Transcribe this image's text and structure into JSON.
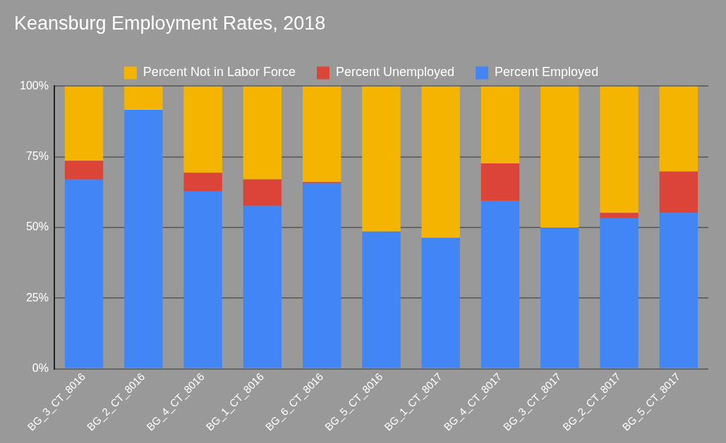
{
  "chart_data": {
    "type": "bar",
    "title": "Keansburg Employment Rates, 2018",
    "categories": [
      "BG_3_CT_8016",
      "BG_2_CT_8016",
      "BG_4_CT_8016",
      "BG_1_CT_8016",
      "BG_6_CT_8016",
      "BG_5_CT_8016",
      "BG_1_CT_8017",
      "BG_4_CT_8017",
      "BG_3_CT_8017",
      "BG_2_CT_8017",
      "BG_5_CT_8017"
    ],
    "series": [
      {
        "name": "Percent Employed",
        "color": "#4285f4",
        "values": [
          67.0,
          91.6,
          62.8,
          57.6,
          65.6,
          48.6,
          46.3,
          59.4,
          50.0,
          53.3,
          55.2
        ]
      },
      {
        "name": "Percent Unemployed",
        "color": "#db4437",
        "values": [
          6.6,
          0,
          6.6,
          9.4,
          0.5,
          0,
          0,
          13.3,
          0,
          1.9,
          14.6
        ]
      },
      {
        "name": "Percent Not in Labor Force",
        "color": "#f4b400",
        "values": [
          26.4,
          8.4,
          30.6,
          33.0,
          33.9,
          51.4,
          53.7,
          27.3,
          50.0,
          44.8,
          30.2
        ]
      }
    ],
    "stacked": true,
    "ylim": [
      0,
      100
    ],
    "yticks": [
      {
        "value": 0,
        "label": "0%"
      },
      {
        "value": 25,
        "label": "25%"
      },
      {
        "value": 50,
        "label": "50%"
      },
      {
        "value": 75,
        "label": "75%"
      },
      {
        "value": 100,
        "label": "100%"
      }
    ],
    "grid": "y",
    "legend": "top"
  }
}
